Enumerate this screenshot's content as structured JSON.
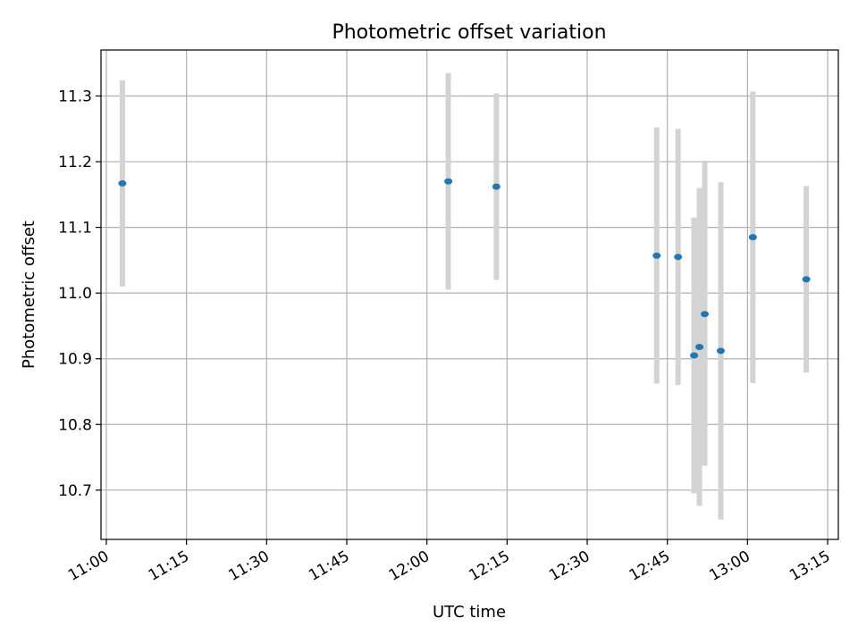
{
  "chart_data": {
    "type": "scatter",
    "title": "Photometric offset variation",
    "xlabel": "UTC time",
    "ylabel": "Photometric offset",
    "x_ticks": [
      "11:00",
      "11:15",
      "11:30",
      "11:45",
      "12:00",
      "12:15",
      "12:30",
      "12:45",
      "13:00",
      "13:15"
    ],
    "y_ticks": [
      10.7,
      10.8,
      10.9,
      11.0,
      11.1,
      11.2,
      11.3
    ],
    "xlim": [
      "10:59",
      "13:17"
    ],
    "ylim": [
      10.625,
      11.37
    ],
    "grid": true,
    "colors": {
      "point": "#1f77b4",
      "errorbar": "#d3d3d3"
    },
    "points": [
      {
        "x": "11:03",
        "y": 11.167,
        "err": 0.157
      },
      {
        "x": "12:04",
        "y": 11.17,
        "err": 0.165
      },
      {
        "x": "12:13",
        "y": 11.162,
        "err": 0.142
      },
      {
        "x": "12:43",
        "y": 11.057,
        "err": 0.195
      },
      {
        "x": "12:47",
        "y": 11.055,
        "err": 0.195
      },
      {
        "x": "12:50",
        "y": 10.905,
        "err": 0.21
      },
      {
        "x": "12:51",
        "y": 10.918,
        "err": 0.242
      },
      {
        "x": "12:52",
        "y": 10.968,
        "err": 0.231
      },
      {
        "x": "12:55",
        "y": 10.912,
        "err": 0.257
      },
      {
        "x": "13:01",
        "y": 11.085,
        "err": 0.222
      },
      {
        "x": "13:11",
        "y": 11.021,
        "err": 0.142
      }
    ]
  }
}
